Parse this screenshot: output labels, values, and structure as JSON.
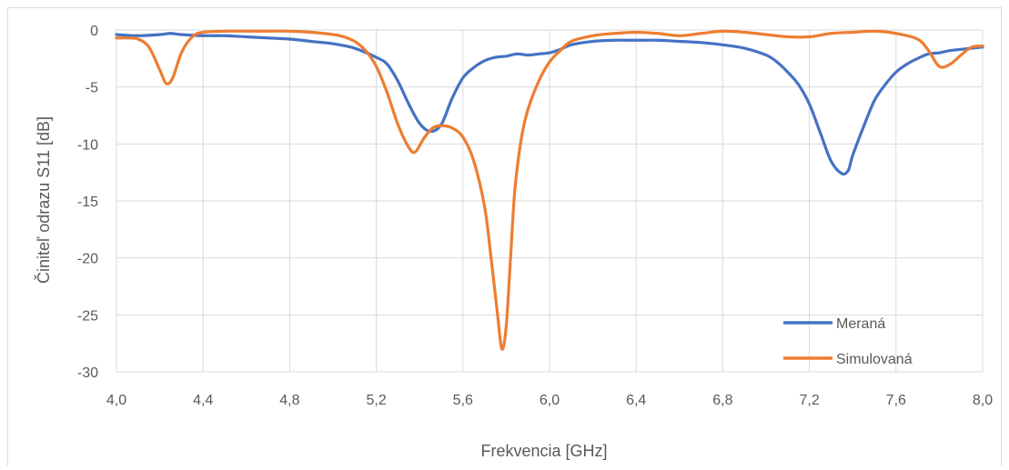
{
  "chart_data": {
    "type": "line",
    "title": "",
    "xlabel": "Frekvencia [GHz]",
    "ylabel": "Činiteľ odrazu S11 [dB]",
    "xlim": [
      4.0,
      8.0
    ],
    "ylim": [
      -30,
      0
    ],
    "x_ticks": [
      "4,0",
      "4,4",
      "4,8",
      "5,2",
      "5,6",
      "6,0",
      "6,4",
      "6,8",
      "7,2",
      "7,6",
      "8,0"
    ],
    "x_tick_values": [
      4.0,
      4.4,
      4.8,
      5.2,
      5.6,
      6.0,
      6.4,
      6.8,
      7.2,
      7.6,
      8.0
    ],
    "y_ticks": [
      "0",
      "-5",
      "-10",
      "-15",
      "-20",
      "-25",
      "-30"
    ],
    "y_tick_values": [
      0,
      -5,
      -10,
      -15,
      -20,
      -25,
      -30
    ],
    "grid": "vertical and horizontal",
    "legend_position": "bottom-right",
    "series": [
      {
        "name": "Meraná",
        "color": "#4472C4",
        "x": [
          4.0,
          4.1,
          4.2,
          4.25,
          4.3,
          4.4,
          4.5,
          4.6,
          4.7,
          4.8,
          4.9,
          5.0,
          5.1,
          5.2,
          5.25,
          5.3,
          5.35,
          5.4,
          5.45,
          5.5,
          5.55,
          5.6,
          5.65,
          5.7,
          5.75,
          5.8,
          5.85,
          5.9,
          5.95,
          6.0,
          6.05,
          6.1,
          6.2,
          6.3,
          6.4,
          6.5,
          6.6,
          6.7,
          6.8,
          6.9,
          7.0,
          7.05,
          7.1,
          7.15,
          7.2,
          7.25,
          7.3,
          7.35,
          7.38,
          7.4,
          7.45,
          7.5,
          7.55,
          7.6,
          7.65,
          7.7,
          7.75,
          7.8,
          7.85,
          7.9,
          7.95,
          8.0
        ],
        "y": [
          -0.4,
          -0.5,
          -0.4,
          -0.3,
          -0.4,
          -0.5,
          -0.5,
          -0.6,
          -0.7,
          -0.8,
          -1.0,
          -1.2,
          -1.6,
          -2.4,
          -3.0,
          -4.5,
          -6.5,
          -8.2,
          -8.9,
          -8.3,
          -6.0,
          -4.2,
          -3.3,
          -2.7,
          -2.4,
          -2.3,
          -2.1,
          -2.2,
          -2.1,
          -2.0,
          -1.7,
          -1.3,
          -1.0,
          -0.9,
          -0.9,
          -0.9,
          -1.0,
          -1.1,
          -1.3,
          -1.6,
          -2.2,
          -2.8,
          -3.7,
          -4.8,
          -6.5,
          -9.0,
          -11.5,
          -12.6,
          -12.3,
          -11.0,
          -8.5,
          -6.2,
          -4.8,
          -3.7,
          -3.0,
          -2.5,
          -2.1,
          -2.0,
          -1.8,
          -1.7,
          -1.6,
          -1.5
        ]
      },
      {
        "name": "Simulovaná",
        "color": "#ED7D31",
        "x": [
          4.0,
          4.05,
          4.1,
          4.15,
          4.2,
          4.23,
          4.26,
          4.3,
          4.35,
          4.4,
          4.5,
          4.6,
          4.7,
          4.8,
          4.9,
          5.0,
          5.05,
          5.1,
          5.15,
          5.2,
          5.25,
          5.3,
          5.35,
          5.38,
          5.42,
          5.46,
          5.5,
          5.55,
          5.6,
          5.65,
          5.7,
          5.73,
          5.76,
          5.78,
          5.8,
          5.82,
          5.84,
          5.87,
          5.9,
          5.95,
          6.0,
          6.05,
          6.1,
          6.2,
          6.3,
          6.4,
          6.5,
          6.6,
          6.7,
          6.8,
          6.9,
          7.0,
          7.1,
          7.2,
          7.3,
          7.4,
          7.5,
          7.6,
          7.7,
          7.75,
          7.8,
          7.85,
          7.9,
          7.95,
          8.0
        ],
        "y": [
          -0.7,
          -0.7,
          -0.8,
          -1.5,
          -3.5,
          -4.7,
          -4.2,
          -2.0,
          -0.6,
          -0.2,
          -0.1,
          -0.1,
          -0.1,
          -0.1,
          -0.2,
          -0.4,
          -0.6,
          -1.0,
          -1.8,
          -3.2,
          -5.5,
          -8.3,
          -10.3,
          -10.7,
          -9.5,
          -8.6,
          -8.4,
          -8.6,
          -9.4,
          -11.5,
          -15.5,
          -20.0,
          -25.0,
          -28.0,
          -26.0,
          -20.0,
          -14.0,
          -9.5,
          -7.0,
          -4.5,
          -2.8,
          -1.8,
          -1.0,
          -0.5,
          -0.3,
          -0.2,
          -0.3,
          -0.5,
          -0.3,
          -0.1,
          -0.2,
          -0.4,
          -0.6,
          -0.6,
          -0.3,
          -0.2,
          -0.1,
          -0.3,
          -0.8,
          -1.8,
          -3.2,
          -3.0,
          -2.2,
          -1.5,
          -1.4
        ]
      }
    ]
  }
}
